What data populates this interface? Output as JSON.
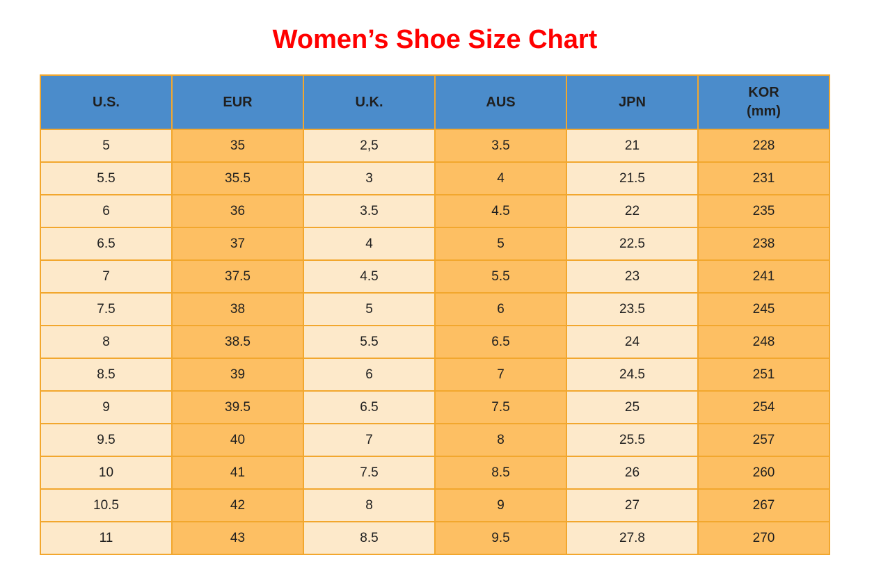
{
  "page": {
    "title": "Women’s Shoe Size Chart"
  },
  "colors": {
    "header_bg": "#4b8ccb",
    "cell_cream": "#fde9ca",
    "cell_orange": "#fdbf63",
    "border": "#f2a72e",
    "title": "#ff0000",
    "text": "#1f1f1f"
  },
  "table": {
    "columns": [
      {
        "key": "us",
        "label": "U.S.",
        "sublabel": "",
        "shade": "cream"
      },
      {
        "key": "eur",
        "label": "EUR",
        "sublabel": "",
        "shade": "orange"
      },
      {
        "key": "uk",
        "label": "U.K.",
        "sublabel": "",
        "shade": "cream"
      },
      {
        "key": "aus",
        "label": "AUS",
        "sublabel": "",
        "shade": "orange"
      },
      {
        "key": "jpn",
        "label": "JPN",
        "sublabel": "",
        "shade": "cream"
      },
      {
        "key": "kor",
        "label": "KOR",
        "sublabel": "(mm)",
        "shade": "orange"
      }
    ],
    "rows": [
      [
        "5",
        "35",
        "2,5",
        "3.5",
        "21",
        "228"
      ],
      [
        "5.5",
        "35.5",
        "3",
        "4",
        "21.5",
        "231"
      ],
      [
        "6",
        "36",
        "3.5",
        "4.5",
        "22",
        "235"
      ],
      [
        "6.5",
        "37",
        "4",
        "5",
        "22.5",
        "238"
      ],
      [
        "7",
        "37.5",
        "4.5",
        "5.5",
        "23",
        "241"
      ],
      [
        "7.5",
        "38",
        "5",
        "6",
        "23.5",
        "245"
      ],
      [
        "8",
        "38.5",
        "5.5",
        "6.5",
        "24",
        "248"
      ],
      [
        "8.5",
        "39",
        "6",
        "7",
        "24.5",
        "251"
      ],
      [
        "9",
        "39.5",
        "6.5",
        "7.5",
        "25",
        "254"
      ],
      [
        "9.5",
        "40",
        "7",
        "8",
        "25.5",
        "257"
      ],
      [
        "10",
        "41",
        "7.5",
        "8.5",
        "26",
        "260"
      ],
      [
        "10.5",
        "42",
        "8",
        "9",
        "27",
        "267"
      ],
      [
        "11",
        "43",
        "8.5",
        "9.5",
        "27.8",
        "270"
      ]
    ]
  },
  "chart_data": {
    "type": "table",
    "title": "Women’s Shoe Size Chart",
    "columns": [
      "U.S.",
      "EUR",
      "U.K.",
      "AUS",
      "JPN",
      "KOR (mm)"
    ],
    "rows": [
      [
        "5",
        "35",
        "2,5",
        "3.5",
        "21",
        "228"
      ],
      [
        "5.5",
        "35.5",
        "3",
        "4",
        "21.5",
        "231"
      ],
      [
        "6",
        "36",
        "3.5",
        "4.5",
        "22",
        "235"
      ],
      [
        "6.5",
        "37",
        "4",
        "5",
        "22.5",
        "238"
      ],
      [
        "7",
        "37.5",
        "4.5",
        "5.5",
        "23",
        "241"
      ],
      [
        "7.5",
        "38",
        "5",
        "6",
        "23.5",
        "245"
      ],
      [
        "8",
        "38.5",
        "5.5",
        "6.5",
        "24",
        "248"
      ],
      [
        "8.5",
        "39",
        "6",
        "7",
        "24.5",
        "251"
      ],
      [
        "9",
        "39.5",
        "6.5",
        "7.5",
        "25",
        "254"
      ],
      [
        "9.5",
        "40",
        "7",
        "8",
        "25.5",
        "257"
      ],
      [
        "10",
        "41",
        "7.5",
        "8.5",
        "26",
        "260"
      ],
      [
        "10.5",
        "42",
        "8",
        "9",
        "27",
        "267"
      ],
      [
        "11",
        "43",
        "8.5",
        "9.5",
        "27.8",
        "270"
      ]
    ],
    "layout_hints": {
      "header_bg": "#4b8ccb",
      "column_shading": [
        "cream",
        "orange",
        "cream",
        "orange",
        "cream",
        "orange"
      ],
      "grid": true
    }
  }
}
